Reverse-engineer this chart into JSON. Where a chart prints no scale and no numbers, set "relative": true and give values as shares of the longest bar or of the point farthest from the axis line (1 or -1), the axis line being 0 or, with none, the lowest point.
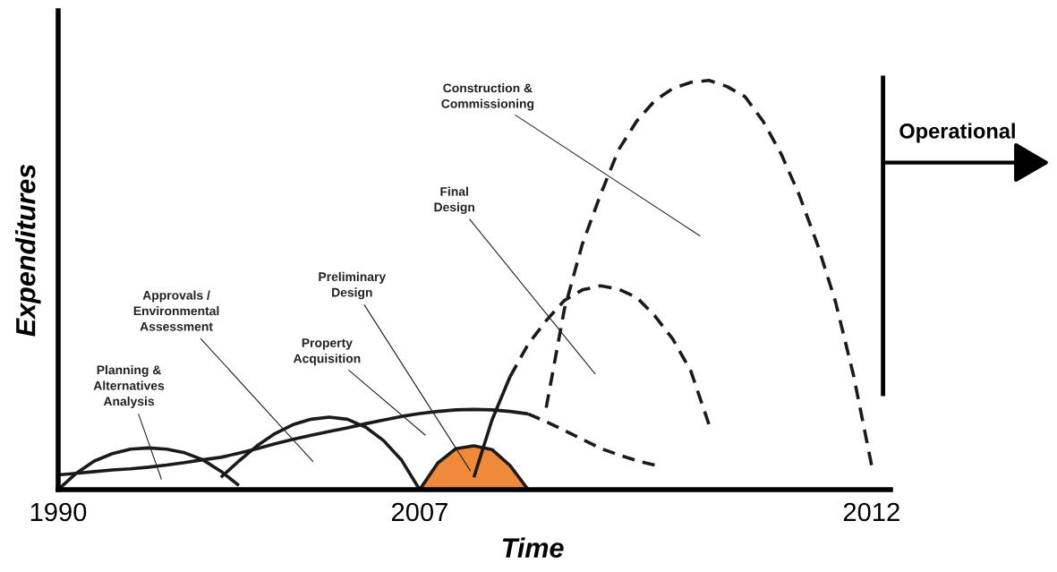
{
  "chart_data": {
    "type": "line",
    "relative": true,
    "xlabel": "Time",
    "ylabel": "Expenditures",
    "categories": [
      "1990",
      null,
      null,
      null,
      null,
      null,
      null,
      null,
      null,
      null,
      null,
      null,
      null,
      null,
      null,
      null,
      null,
      null,
      null,
      null,
      "2007",
      null,
      null,
      null,
      null,
      null,
      null,
      null,
      null,
      null,
      null,
      null,
      null,
      null,
      null,
      null,
      null,
      null,
      null,
      null,
      null,
      null,
      null,
      null,
      null,
      "2012",
      null
    ],
    "series": [
      {
        "color": "#1a1a1a",
        "line_style": "solid",
        "values": [
          0,
          0.04,
          0.07,
          0.088,
          0.099,
          0.102,
          0.099,
          0.09,
          0.073,
          0.045,
          0.01,
          null,
          null,
          null,
          null,
          null,
          null,
          null,
          null,
          null,
          null,
          null,
          null,
          null,
          null,
          null,
          null,
          null,
          null,
          null,
          null,
          null,
          null,
          null,
          null,
          null,
          null,
          null,
          null,
          null,
          null,
          null,
          null,
          null,
          null,
          null,
          null
        ]
      },
      {
        "color": "#1a1a1a",
        "line_style": "solid",
        "values": [
          null,
          null,
          null,
          null,
          null,
          null,
          null,
          null,
          null,
          0.03,
          0.07,
          0.107,
          0.137,
          0.159,
          0.172,
          0.177,
          0.172,
          0.153,
          0.12,
          0.072,
          0,
          null,
          null,
          null,
          null,
          null,
          null,
          null,
          null,
          null,
          null,
          null,
          null,
          null,
          null,
          null,
          null,
          null,
          null,
          null,
          null,
          null,
          null,
          null,
          null,
          null,
          null
        ]
      },
      {
        "color": "#1a1a1a",
        "line_style": "solid",
        "values": [
          0.036,
          0.04,
          0.044,
          0.048,
          0.051,
          0.055,
          0.06,
          0.066,
          0.073,
          0.079,
          0.089,
          0.1,
          0.112,
          0.123,
          0.133,
          0.142,
          0.151,
          0.161,
          0.17,
          0.179,
          0.186,
          0.191,
          0.195,
          0.196,
          0.195,
          0.191,
          0.185,
          null,
          null,
          null,
          null,
          null,
          null,
          null,
          null,
          null,
          null,
          null,
          null,
          null,
          null,
          null,
          null,
          null,
          null,
          null,
          null
        ]
      },
      {
        "color": "#1a1a1a",
        "line_style": "dashed",
        "values": [
          null,
          null,
          null,
          null,
          null,
          null,
          null,
          null,
          null,
          null,
          null,
          null,
          null,
          null,
          null,
          null,
          null,
          null,
          null,
          null,
          null,
          null,
          null,
          null,
          null,
          null,
          0.185,
          0.166,
          0.145,
          0.123,
          0.101,
          0.085,
          0.071,
          0.06,
          null,
          null,
          null,
          null,
          null,
          null,
          null,
          null,
          null,
          null,
          null,
          null,
          null
        ]
      },
      {
        "type": "area",
        "color": "#ef8a3a",
        "line_style": "solid",
        "values": [
          null,
          null,
          null,
          null,
          null,
          null,
          null,
          null,
          null,
          null,
          null,
          null,
          null,
          null,
          null,
          null,
          null,
          null,
          null,
          null,
          0,
          0.065,
          0.1,
          0.107,
          0.098,
          0.059,
          0,
          null,
          null,
          null,
          null,
          null,
          null,
          null,
          null,
          null,
          null,
          null,
          null,
          null,
          null,
          null,
          null,
          null,
          null,
          null,
          null
        ]
      },
      {
        "color": "#1a1a1a",
        "line_style": "solid",
        "values": [
          null,
          null,
          null,
          null,
          null,
          null,
          null,
          null,
          null,
          null,
          null,
          null,
          null,
          null,
          null,
          null,
          null,
          null,
          null,
          null,
          null,
          null,
          null,
          0.03,
          0.17,
          0.276,
          null,
          null,
          null,
          null,
          null,
          null,
          null,
          null,
          null,
          null,
          null,
          null,
          null,
          null,
          null,
          null,
          null,
          null,
          null,
          null,
          null
        ]
      },
      {
        "color": "#1a1a1a",
        "line_style": "dashed",
        "values": [
          null,
          null,
          null,
          null,
          null,
          null,
          null,
          null,
          null,
          null,
          null,
          null,
          null,
          null,
          null,
          null,
          null,
          null,
          null,
          null,
          null,
          null,
          null,
          null,
          null,
          0.276,
          0.355,
          0.413,
          0.462,
          0.488,
          0.498,
          0.49,
          0.47,
          0.425,
          0.368,
          0.29,
          0.16,
          null,
          null,
          null,
          null,
          null,
          null,
          null,
          null,
          null,
          null
        ]
      },
      {
        "color": "#1a1a1a",
        "line_style": "dashed",
        "values": [
          null,
          null,
          null,
          null,
          null,
          null,
          null,
          null,
          null,
          null,
          null,
          null,
          null,
          null,
          null,
          null,
          null,
          null,
          null,
          null,
          null,
          null,
          null,
          null,
          null,
          null,
          null,
          0.2,
          0.44,
          0.6,
          0.72,
          0.83,
          0.9,
          0.95,
          0.98,
          0.995,
          1.0,
          0.985,
          0.96,
          0.9,
          0.82,
          0.72,
          0.6,
          0.46,
          0.28,
          0.06,
          null
        ]
      }
    ],
    "annotations": [
      "Planning &\nAlternatives\nAnalysis",
      "Approvals /\nEnvironmental\nAssessment",
      "Property\nAcquisition",
      "Preliminary\nDesign",
      "Final\nDesign",
      "Construction &\nCommissioning",
      "Operational"
    ]
  }
}
